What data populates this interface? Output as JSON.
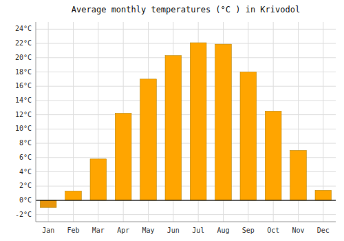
{
  "chart_data": {
    "type": "bar",
    "title": "Average monthly temperatures (°C ) in Krivodol",
    "categories": [
      "Jan",
      "Feb",
      "Mar",
      "Apr",
      "May",
      "Jun",
      "Jul",
      "Aug",
      "Sep",
      "Oct",
      "Nov",
      "Dec"
    ],
    "values": [
      -1.0,
      1.3,
      5.8,
      12.2,
      17.0,
      20.3,
      22.1,
      21.9,
      18.0,
      12.5,
      7.0,
      1.4
    ],
    "colors": [
      "#E8950A",
      "#FFA500",
      "#FFA500",
      "#FFA500",
      "#FFA500",
      "#FFA500",
      "#FFA500",
      "#FFA500",
      "#FFA500",
      "#FFA500",
      "#FFA500",
      "#FFA500"
    ],
    "ylim": [
      -3,
      25
    ],
    "yticks": [
      {
        "value": -2,
        "label": "-2°C"
      },
      {
        "value": 0,
        "label": "0°C"
      },
      {
        "value": 2,
        "label": "2°C"
      },
      {
        "value": 4,
        "label": "4°C"
      },
      {
        "value": 6,
        "label": "6°C"
      },
      {
        "value": 8,
        "label": "8°C"
      },
      {
        "value": 10,
        "label": "10°C"
      },
      {
        "value": 12,
        "label": "12°C"
      },
      {
        "value": 14,
        "label": "14°C"
      },
      {
        "value": 16,
        "label": "16°C"
      },
      {
        "value": 18,
        "label": "18°C"
      },
      {
        "value": 20,
        "label": "20°C"
      },
      {
        "value": 22,
        "label": "22°C"
      },
      {
        "value": 24,
        "label": "24°C"
      }
    ],
    "grid": true
  }
}
